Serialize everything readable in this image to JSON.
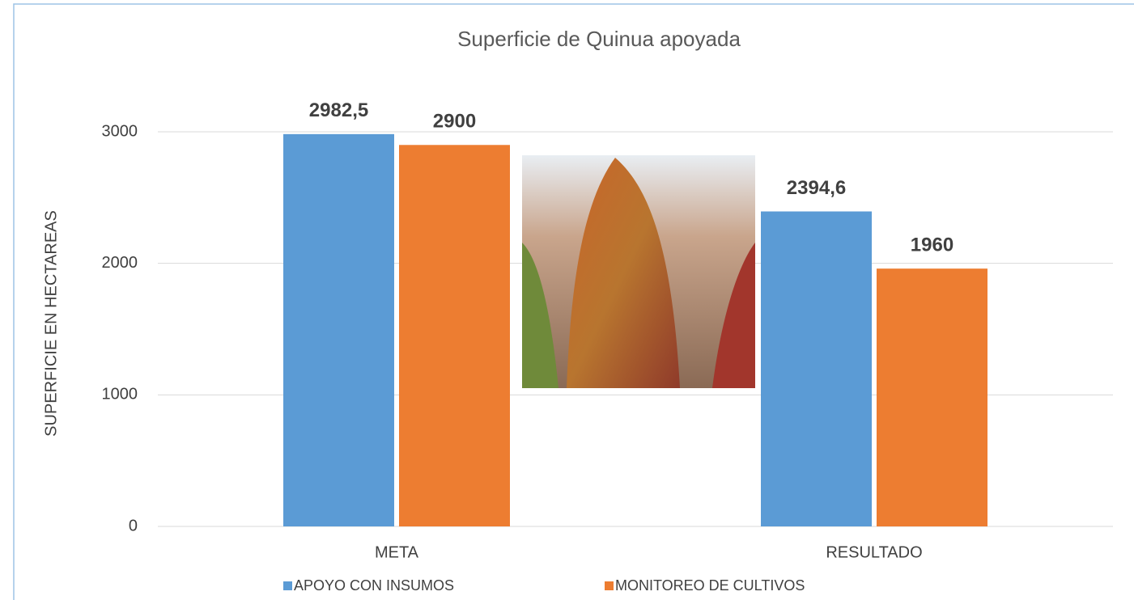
{
  "chart_data": {
    "type": "bar",
    "title": "Superficie de Quinua apoyada",
    "y_label": "SUPERFICIE EN HECTAREAS",
    "categories": [
      "META",
      "RESULTADO"
    ],
    "series": [
      {
        "name": "APOYO CON INSUMOS",
        "color": "#5b9bd5",
        "values": [
          2982.5,
          2394.6
        ],
        "value_labels": [
          "2982,5",
          "2394,6"
        ]
      },
      {
        "name": "MONITOREO DE CULTIVOS",
        "color": "#ed7d31",
        "values": [
          2900,
          1960
        ],
        "value_labels": [
          "2900",
          "1960"
        ]
      }
    ],
    "ylim": [
      0,
      3000
    ],
    "yticks": [
      0,
      1000,
      2000,
      3000
    ],
    "grid": true,
    "legend": "bottom"
  }
}
